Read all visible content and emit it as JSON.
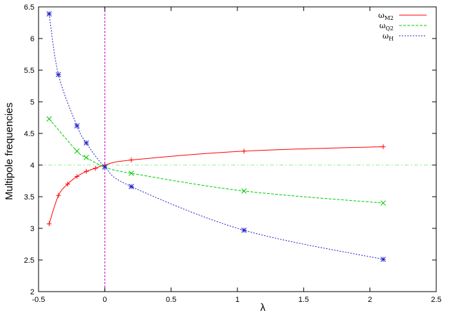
{
  "chart_data": {
    "type": "line",
    "title": "",
    "xlabel": "λ",
    "ylabel": "Multipole  frequencies",
    "xlim": [
      -0.5,
      2.5
    ],
    "ylim": [
      2,
      6.5
    ],
    "xticks": [
      "-0.5",
      "0",
      "0.5",
      "1",
      "1.5",
      "2",
      "2.5"
    ],
    "yticks": [
      "2",
      "2.5",
      "3",
      "3.5",
      "4",
      "4.5",
      "5",
      "5.5",
      "6",
      "6.5"
    ],
    "grid": false,
    "legend_position": "top-right",
    "reference_lines": [
      {
        "orientation": "vertical",
        "value": 0,
        "color": "#c000c0"
      },
      {
        "orientation": "horizontal",
        "value": 4,
        "color": "#9be89b"
      }
    ],
    "series": [
      {
        "name": "ω",
        "subscript": "M2",
        "color": "#ff0000",
        "marker": "plus",
        "points": [
          [
            -0.42,
            3.07
          ],
          [
            -0.35,
            3.52
          ],
          [
            -0.28,
            3.7
          ],
          [
            -0.21,
            3.82
          ],
          [
            -0.14,
            3.9
          ],
          [
            -0.07,
            3.95
          ],
          [
            0.0,
            4.0
          ],
          [
            0.2,
            4.08
          ],
          [
            1.05,
            4.22
          ],
          [
            2.1,
            4.29
          ]
        ]
      },
      {
        "name": "ω",
        "subscript": "Q2",
        "color": "#00cc00",
        "marker": "cross",
        "points": [
          [
            -0.42,
            4.73
          ],
          [
            -0.21,
            4.22
          ],
          [
            -0.14,
            4.12
          ],
          [
            0.0,
            3.97
          ],
          [
            0.2,
            3.87
          ],
          [
            1.05,
            3.59
          ],
          [
            2.1,
            3.4
          ]
        ]
      },
      {
        "name": "ω",
        "subscript": "H",
        "color": "#2020cc",
        "marker": "star",
        "points": [
          [
            -0.42,
            6.39
          ],
          [
            -0.35,
            5.43
          ],
          [
            -0.21,
            4.62
          ],
          [
            -0.14,
            4.35
          ],
          [
            0.0,
            3.97
          ],
          [
            0.2,
            3.66
          ],
          [
            1.05,
            2.97
          ],
          [
            2.1,
            2.51
          ]
        ]
      }
    ]
  }
}
